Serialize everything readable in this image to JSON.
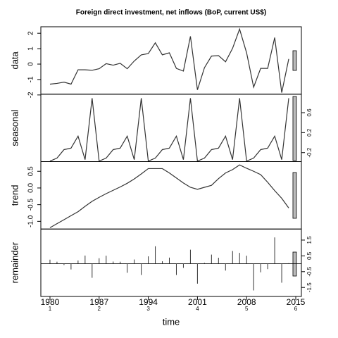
{
  "chart_data": {
    "type": "stl",
    "title": "Foreign direct investment, net inflows (BoP, current US$)",
    "xlabel": "time",
    "x": [
      1980,
      1981,
      1982,
      1983,
      1984,
      1985,
      1986,
      1987,
      1988,
      1989,
      1990,
      1991,
      1992,
      1993,
      1994,
      1995,
      1996,
      1997,
      1998,
      1999,
      2000,
      2001,
      2002,
      2003,
      2004,
      2005,
      2006,
      2007,
      2008,
      2009,
      2010,
      2011,
      2012,
      2013,
      2014
    ],
    "xlim": [
      1978.7,
      2015.8
    ],
    "xticks": [
      1980,
      1987,
      1994,
      2001,
      2008,
      2015
    ],
    "cycle_labels": [
      1,
      2,
      3,
      4,
      5,
      6
    ],
    "color": "#333333",
    "panels": [
      {
        "label": "data",
        "kind": "line",
        "side": "left",
        "ylim": [
          -1.95,
          2.42
        ],
        "yticks": [
          -2,
          -1,
          0,
          1,
          2
        ],
        "values": [
          -1.3,
          -1.25,
          -1.17,
          -1.3,
          -0.37,
          -0.37,
          -0.4,
          -0.3,
          0.03,
          -0.07,
          0.05,
          -0.3,
          0.2,
          0.6,
          0.68,
          1.38,
          0.6,
          0.73,
          -0.28,
          -0.45,
          1.8,
          -1.67,
          -0.23,
          0.52,
          0.55,
          0.15,
          1.02,
          2.27,
          0.73,
          -1.5,
          -0.28,
          -0.28,
          1.72,
          -1.85,
          0.33
        ]
      },
      {
        "label": "seasonal",
        "kind": "line",
        "side": "right",
        "ylim": [
          -0.38,
          0.97
        ],
        "yticks": [
          -0.2,
          0.2,
          0.6
        ],
        "values": [
          -0.37,
          -0.31,
          -0.14,
          -0.11,
          0.13,
          -0.34,
          0.89,
          -0.37,
          -0.31,
          -0.14,
          -0.11,
          0.13,
          -0.34,
          0.89,
          -0.37,
          -0.31,
          -0.14,
          -0.11,
          0.13,
          -0.34,
          0.89,
          -0.37,
          -0.31,
          -0.14,
          -0.11,
          0.13,
          -0.34,
          0.89,
          -0.37,
          -0.31,
          -0.14,
          -0.11,
          0.13,
          -0.34,
          0.89
        ]
      },
      {
        "label": "trend",
        "kind": "line",
        "side": "left",
        "ylim": [
          -1.23,
          0.79
        ],
        "yticks": [
          {
            "value": -1,
            "label": "-1.0"
          },
          -0.5,
          {
            "value": 0,
            "label": "0.0"
          },
          0.5
        ],
        "values": [
          -1.19,
          -1.07,
          -0.95,
          -0.83,
          -0.71,
          -0.55,
          -0.4,
          -0.28,
          -0.17,
          -0.07,
          0.03,
          0.14,
          0.27,
          0.42,
          0.58,
          0.58,
          0.58,
          0.45,
          0.3,
          0.15,
          0.02,
          -0.04,
          0.02,
          0.08,
          0.28,
          0.45,
          0.55,
          0.69,
          0.59,
          0.5,
          0.4,
          0.17,
          -0.08,
          -0.31,
          -0.6
        ]
      },
      {
        "label": "remainder",
        "kind": "bar",
        "side": "right",
        "ylim": [
          -2.07,
          2.2
        ],
        "yticks": [
          -1.5,
          -0.5,
          0.5,
          1.5
        ],
        "values": [
          0.26,
          0.13,
          -0.08,
          -0.36,
          0.21,
          0.52,
          -0.89,
          0.35,
          0.51,
          0.14,
          0.13,
          -0.57,
          0.27,
          -0.71,
          0.47,
          1.11,
          0.16,
          0.39,
          -0.71,
          -0.26,
          0.89,
          -1.26,
          0.06,
          0.58,
          0.38,
          -0.43,
          0.81,
          0.69,
          0.51,
          -1.69,
          -0.54,
          -0.34,
          1.67,
          -1.2,
          0.04
        ]
      }
    ]
  }
}
